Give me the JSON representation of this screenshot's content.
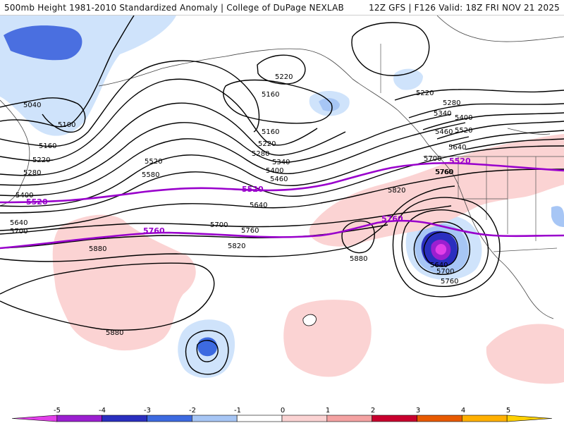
{
  "header": {
    "title": "500mb Height 1981-2010 Standardized Anomaly | College of DuPage NEXLAB",
    "run_info": "12Z GFS | F126 Valid: 18Z FRI NOV 21 2025"
  },
  "colors": {
    "contour": "#000000",
    "highlight_contour": "#9900cc",
    "anom_neg_1": "#cfe3fb",
    "anom_neg_2": "#a7c6f5",
    "anom_neg_3": "#4a6fe0",
    "anom_neg_4": "#2a2fbf",
    "anom_neg_5": "#9b1fd0",
    "anom_pos_1": "#fbd3d3",
    "anom_pos_2": "#f4a2a2",
    "coast": "#444444"
  },
  "contour_labels": [
    {
      "id": "l1",
      "text": "5040"
    },
    {
      "id": "l2",
      "text": "5100"
    },
    {
      "id": "l3",
      "text": "5160"
    },
    {
      "id": "l4",
      "text": "5220"
    },
    {
      "id": "l5",
      "text": "5280"
    },
    {
      "id": "l6",
      "text": "5400"
    },
    {
      "id": "l7",
      "text": "5520"
    },
    {
      "id": "l8",
      "text": "5640"
    },
    {
      "id": "l9",
      "text": "5700"
    },
    {
      "id": "l10",
      "text": "5760"
    },
    {
      "id": "l11",
      "text": "5880"
    },
    {
      "id": "l12",
      "text": "5880"
    },
    {
      "id": "l13",
      "text": "5160"
    },
    {
      "id": "l14",
      "text": "5220"
    },
    {
      "id": "l15",
      "text": "5160"
    },
    {
      "id": "l16",
      "text": "5220"
    },
    {
      "id": "l17",
      "text": "5280"
    },
    {
      "id": "l18",
      "text": "5340"
    },
    {
      "id": "l19",
      "text": "5400"
    },
    {
      "id": "l20",
      "text": "5460"
    },
    {
      "id": "l21",
      "text": "5520"
    },
    {
      "id": "l22",
      "text": "5580"
    },
    {
      "id": "l23",
      "text": "5520"
    },
    {
      "id": "l24",
      "text": "5640"
    },
    {
      "id": "l25",
      "text": "5700"
    },
    {
      "id": "l26",
      "text": "5760"
    },
    {
      "id": "l27",
      "text": "5760"
    },
    {
      "id": "l28",
      "text": "5820"
    },
    {
      "id": "l29",
      "text": "5820"
    },
    {
      "id": "l30",
      "text": "5760"
    },
    {
      "id": "l31",
      "text": "5880"
    },
    {
      "id": "l32",
      "text": "5220"
    },
    {
      "id": "l33",
      "text": "5280"
    },
    {
      "id": "l34",
      "text": "5340"
    },
    {
      "id": "l35",
      "text": "5400"
    },
    {
      "id": "l36",
      "text": "5460"
    },
    {
      "id": "l37",
      "text": "5520"
    },
    {
      "id": "l38",
      "text": "5640"
    },
    {
      "id": "l39",
      "text": "5700"
    },
    {
      "id": "l40",
      "text": "5520"
    },
    {
      "id": "l41",
      "text": "5760"
    },
    {
      "id": "l42",
      "text": "5640"
    },
    {
      "id": "l43",
      "text": "5700"
    },
    {
      "id": "l44",
      "text": "5760"
    }
  ],
  "legend": {
    "ticks": [
      "-5",
      "-4",
      "-3",
      "-2",
      "-1",
      "0",
      "1",
      "2",
      "3",
      "4",
      "5"
    ],
    "bins": [
      {
        "color": "#e23fe9"
      },
      {
        "color": "#9b1fd0"
      },
      {
        "color": "#2a2fbf"
      },
      {
        "color": "#3d6ae0"
      },
      {
        "color": "#a7c6f5"
      },
      {
        "color": "#ffffff"
      },
      {
        "color": "#fbd3d3"
      },
      {
        "color": "#f4a2a2"
      },
      {
        "color": "#c8002e"
      },
      {
        "color": "#e85a00"
      },
      {
        "color": "#ffb000"
      },
      {
        "color": "#ffd000"
      }
    ]
  }
}
